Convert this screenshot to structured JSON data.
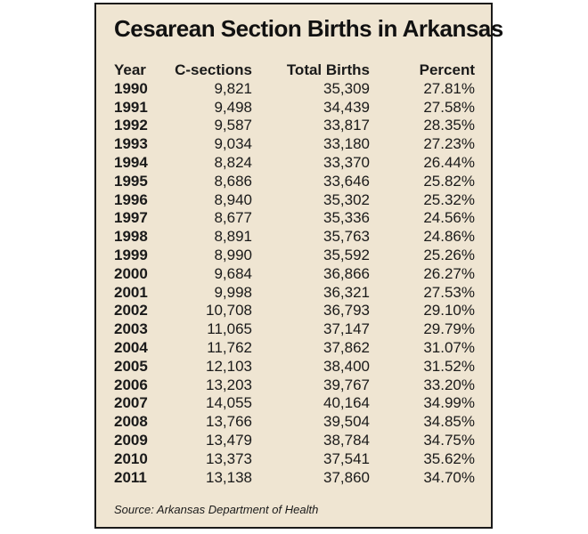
{
  "chart_data": {
    "type": "table",
    "title": "Cesarean Section Births in Arkansas",
    "columns": [
      "Year",
      "C-sections",
      "Total Births",
      "Percent"
    ],
    "rows": [
      [
        "1990",
        "9,821",
        "35,309",
        "27.81%"
      ],
      [
        "1991",
        "9,498",
        "34,439",
        "27.58%"
      ],
      [
        "1992",
        "9,587",
        "33,817",
        "28.35%"
      ],
      [
        "1993",
        "9,034",
        "33,180",
        "27.23%"
      ],
      [
        "1994",
        "8,824",
        "33,370",
        "26.44%"
      ],
      [
        "1995",
        "8,686",
        "33,646",
        "25.82%"
      ],
      [
        "1996",
        "8,940",
        "35,302",
        "25.32%"
      ],
      [
        "1997",
        "8,677",
        "35,336",
        "24.56%"
      ],
      [
        "1998",
        "8,891",
        "35,763",
        "24.86%"
      ],
      [
        "1999",
        "8,990",
        "35,592",
        "25.26%"
      ],
      [
        "2000",
        "9,684",
        "36,866",
        "26.27%"
      ],
      [
        "2001",
        "9,998",
        "36,321",
        "27.53%"
      ],
      [
        "2002",
        "10,708",
        "36,793",
        "29.10%"
      ],
      [
        "2003",
        "11,065",
        "37,147",
        "29.79%"
      ],
      [
        "2004",
        "11,762",
        "37,862",
        "31.07%"
      ],
      [
        "2005",
        "12,103",
        "38,400",
        "31.52%"
      ],
      [
        "2006",
        "13,203",
        "39,767",
        "33.20%"
      ],
      [
        "2007",
        "14,055",
        "40,164",
        "34.99%"
      ],
      [
        "2008",
        "13,766",
        "39,504",
        "34.85%"
      ],
      [
        "2009",
        "13,479",
        "38,784",
        "34.75%"
      ],
      [
        "2010",
        "13,373",
        "37,541",
        "35.62%"
      ],
      [
        "2011",
        "13,138",
        "37,860",
        "34.70%"
      ]
    ],
    "source": "Source: Arkansas Department of Health"
  },
  "colors": {
    "panel_background": "#efe5d2",
    "border": "#1a1a1a",
    "text": "#1a1a1a"
  }
}
